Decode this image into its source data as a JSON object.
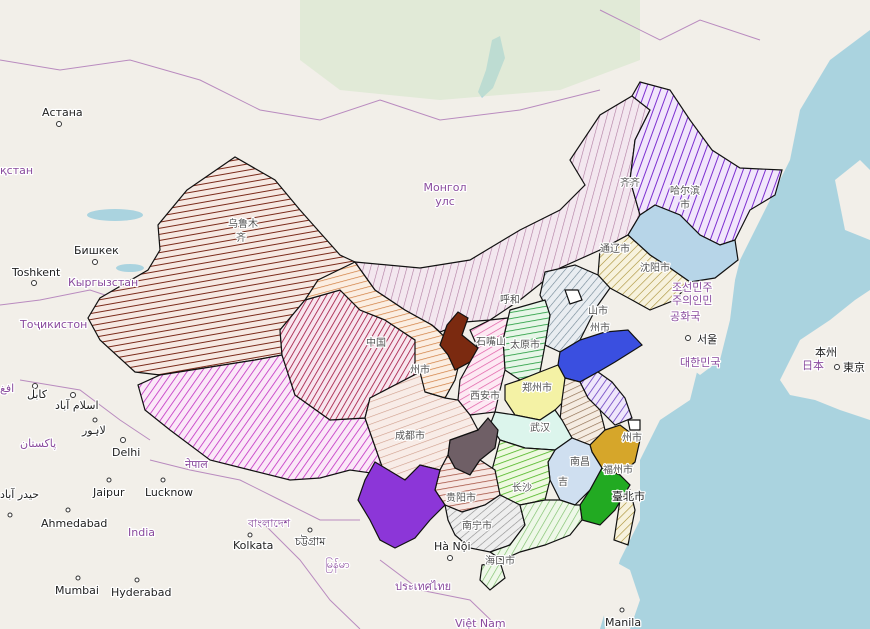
{
  "colors": {
    "sea": "#aad3df",
    "land": "#f2efe9",
    "forest": "#cfe5c5",
    "border": "#b98bbf"
  },
  "country_labels": [
    {
      "id": "mongolia_1",
      "text": "Монгол"
    },
    {
      "id": "mongolia_2",
      "text": "улс"
    },
    {
      "id": "kyrgyzstan",
      "text": "Кыргызстан"
    },
    {
      "id": "tajikistan",
      "text": "Тоҷикистон"
    },
    {
      "id": "kazakhstan",
      "text": "қстан"
    },
    {
      "id": "india",
      "text": "India"
    },
    {
      "id": "nepal",
      "text": "नेपाल"
    },
    {
      "id": "bangladesh",
      "text": "বাংলাদেশ"
    },
    {
      "id": "myanmar",
      "text": "မြန်မာ"
    },
    {
      "id": "thailand",
      "text": "ประเทศไทย"
    },
    {
      "id": "vietnam",
      "text": "Việt Nam"
    },
    {
      "id": "north_korea",
      "text": "조선민주"
    },
    {
      "id": "north_korea_2",
      "text": "주의인민"
    },
    {
      "id": "north_korea_3",
      "text": "공화국"
    },
    {
      "id": "south_korea",
      "text": "대한민국"
    },
    {
      "id": "japan",
      "text": "日本"
    },
    {
      "id": "pakistan",
      "text": "پاکستان"
    },
    {
      "id": "afg",
      "text": "افغ"
    }
  ],
  "city_labels": [
    {
      "id": "astana",
      "text": "Астана"
    },
    {
      "id": "bishkek",
      "text": "Бишкек"
    },
    {
      "id": "toshkent",
      "text": "Toshkent"
    },
    {
      "id": "kabul",
      "text": "کابل"
    },
    {
      "id": "islamabad",
      "text": "اسلام آباد"
    },
    {
      "id": "lahore",
      "text": "لاہور"
    },
    {
      "id": "delhi",
      "text": "Delhi"
    },
    {
      "id": "jaipur",
      "text": "Jaipur"
    },
    {
      "id": "lucknow",
      "text": "Lucknow"
    },
    {
      "id": "ahmedabad",
      "text": "Ahmedabad"
    },
    {
      "id": "karachi",
      "text": "حيدر آباد"
    },
    {
      "id": "kolkata",
      "text": "Kolkata"
    },
    {
      "id": "chittagong",
      "text": "চট্টগ্রাম"
    },
    {
      "id": "mumbai",
      "text": "Mumbai"
    },
    {
      "id": "hyderabad",
      "text": "Hyderabad"
    },
    {
      "id": "hanoi",
      "text": "Hà Nội"
    },
    {
      "id": "manila",
      "text": "Manila"
    },
    {
      "id": "seoul",
      "text": "서울"
    },
    {
      "id": "tokyo",
      "text": "東京"
    },
    {
      "id": "honshu",
      "text": "本州"
    },
    {
      "id": "taipei",
      "text": "臺北市"
    }
  ],
  "province_labels": [
    {
      "id": "urumqi_1",
      "text": "乌鲁木"
    },
    {
      "id": "urumqi_2",
      "text": "齐"
    },
    {
      "id": "harbin_1",
      "text": "哈尔滨"
    },
    {
      "id": "harbin_2",
      "text": "市"
    },
    {
      "id": "qiqihar",
      "text": "齐齐"
    },
    {
      "id": "tongliao",
      "text": "通辽市"
    },
    {
      "id": "shenyang",
      "text": "沈阳市"
    },
    {
      "id": "hohhot",
      "text": "呼和"
    },
    {
      "id": "taiyuan",
      "text": "太原市"
    },
    {
      "id": "jinan",
      "text": "山市"
    },
    {
      "id": "yantai",
      "text": "州市"
    },
    {
      "id": "zhengzhou",
      "text": "郑州市"
    },
    {
      "id": "xian",
      "text": "西安市"
    },
    {
      "id": "wuhan",
      "text": "武汉"
    },
    {
      "id": "chengdu",
      "text": "成都市"
    },
    {
      "id": "lanzhou",
      "text": "州市"
    },
    {
      "id": "qinghai",
      "text": "中国"
    },
    {
      "id": "yinchuan",
      "text": "石嘴山"
    },
    {
      "id": "hangzhou",
      "text": "州市"
    },
    {
      "id": "nanchang",
      "text": "南昌"
    },
    {
      "id": "fuzhou",
      "text": "福州市"
    },
    {
      "id": "guiyang",
      "text": "贵阳市"
    },
    {
      "id": "nanning",
      "text": "南宁市"
    },
    {
      "id": "haikou",
      "text": "海口市"
    },
    {
      "id": "jian",
      "text": "吉"
    },
    {
      "id": "changsha",
      "text": "长沙"
    }
  ],
  "legend_note": ""
}
